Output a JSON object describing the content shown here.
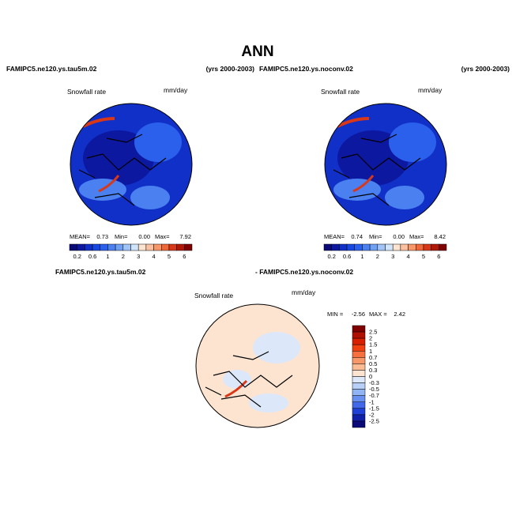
{
  "title": "ANN",
  "panels": [
    {
      "case": "FAMIPC5.ne120.ys.tau5m.02",
      "years": "(yrs 2000-2003)",
      "variable": "Snowfall rate",
      "units": "mm/day",
      "stats": {
        "mean_label": "MEAN=",
        "mean": "0.73",
        "min_label": "Min=",
        "min": "0.00",
        "max_label": "Max=",
        "max": "7.92"
      },
      "colorbar": {
        "colors": [
          "#0a0a78",
          "#0c18a0",
          "#1030c8",
          "#1848e0",
          "#2a60ec",
          "#4a80f0",
          "#70a0f4",
          "#a0c4f8",
          "#d0e4fc",
          "#fde4d0",
          "#fcc0a0",
          "#f89868",
          "#f06838",
          "#d83818",
          "#b01808",
          "#800000"
        ],
        "labels": [
          "0.2",
          "0.6",
          "1",
          "2",
          "3",
          "4",
          "5",
          "6"
        ]
      }
    },
    {
      "case": "FAMIPC5.ne120.ys.noconv.02",
      "years": "(yrs 2000-2003)",
      "variable": "Snowfall rate",
      "units": "mm/day",
      "stats": {
        "mean_label": "MEAN=",
        "mean": "0.74",
        "min_label": "Min=",
        "min": "0.00",
        "max_label": "Max=",
        "max": "8.42"
      },
      "colorbar": {
        "colors": [
          "#0a0a78",
          "#0c18a0",
          "#1030c8",
          "#1848e0",
          "#2a60ec",
          "#4a80f0",
          "#70a0f4",
          "#a0c4f8",
          "#d0e4fc",
          "#fde4d0",
          "#fcc0a0",
          "#f89868",
          "#f06838",
          "#d83818",
          "#b01808",
          "#800000"
        ],
        "labels": [
          "0.2",
          "0.6",
          "1",
          "2",
          "3",
          "4",
          "5",
          "6"
        ]
      }
    }
  ],
  "difference": {
    "case_a": "FAMIPC5.ne120.ys.tau5m.02",
    "case_b": "- FAMIPC5.ne120.ys.noconv.02",
    "variable": "Snowfall rate",
    "units": "mm/day",
    "min_label": "MIN =",
    "min": "-2.56",
    "max_label": "MAX =",
    "max": "2.42",
    "colorbar": {
      "colors": [
        "#800000",
        "#b01000",
        "#d82000",
        "#f04010",
        "#f87040",
        "#f89868",
        "#fbbc94",
        "#fde4d0",
        "#dce8fa",
        "#b8d0f8",
        "#90b4f4",
        "#6890f0",
        "#4068e8",
        "#2040d8",
        "#1020a8",
        "#0a0a78"
      ],
      "labels": [
        "2.5",
        "2",
        "1.5",
        "1",
        "0.7",
        "0.5",
        "0.3",
        "0",
        "-0.3",
        "-0.5",
        "-0.7",
        "-1",
        "-1.5",
        "-2",
        "-2.5"
      ]
    }
  }
}
